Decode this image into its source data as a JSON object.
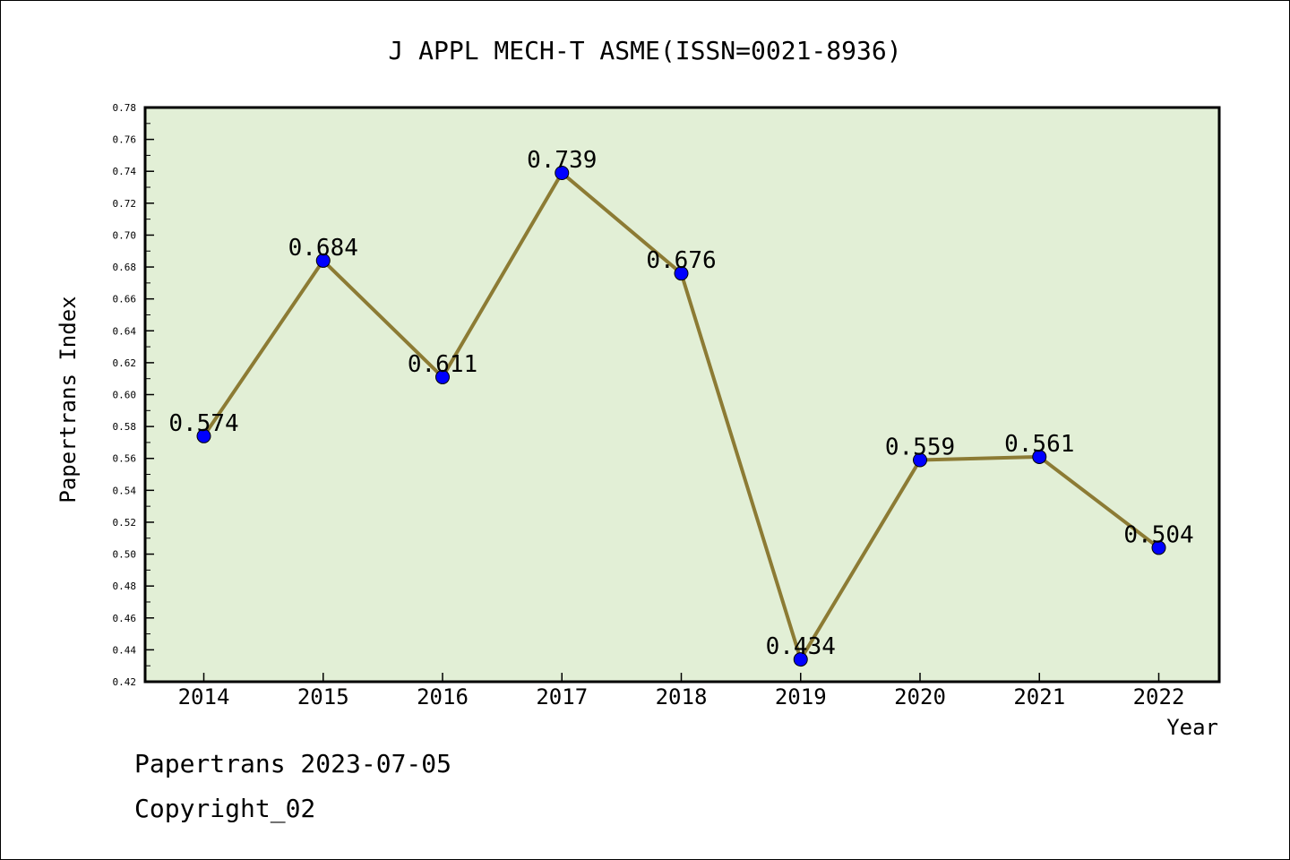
{
  "chart_data": {
    "type": "line",
    "title": "J APPL MECH-T ASME(ISSN=0021-8936)",
    "xlabel": "Year",
    "ylabel": "Papertrans Index",
    "categories": [
      "2014",
      "2015",
      "2016",
      "2017",
      "2018",
      "2019",
      "2020",
      "2021",
      "2022"
    ],
    "series": [
      {
        "values": [
          0.574,
          0.684,
          0.611,
          0.739,
          0.676,
          0.434,
          0.559,
          0.561,
          0.504
        ],
        "data_labels": [
          "0.574",
          "0.684",
          "0.611",
          "0.739",
          "0.676",
          "0.434",
          "0.559",
          "0.561",
          "0.504"
        ]
      }
    ],
    "ylim": [
      0.42,
      0.78
    ],
    "yticks": [
      "0.42",
      "0.44",
      "0.46",
      "0.48",
      "0.50",
      "0.52",
      "0.54",
      "0.56",
      "0.58",
      "0.60",
      "0.62",
      "0.64",
      "0.66",
      "0.68",
      "0.70",
      "0.72",
      "0.74",
      "0.76",
      "0.78"
    ],
    "grid": false,
    "legend": "none",
    "colors": {
      "plot_background": "#e2efd6",
      "line": "#8c7b34",
      "marker": "#0000ff",
      "axis": "#000000"
    }
  },
  "footer": {
    "date_line": "Papertrans 2023-07-05",
    "copyright_line": "Copyright_02"
  }
}
